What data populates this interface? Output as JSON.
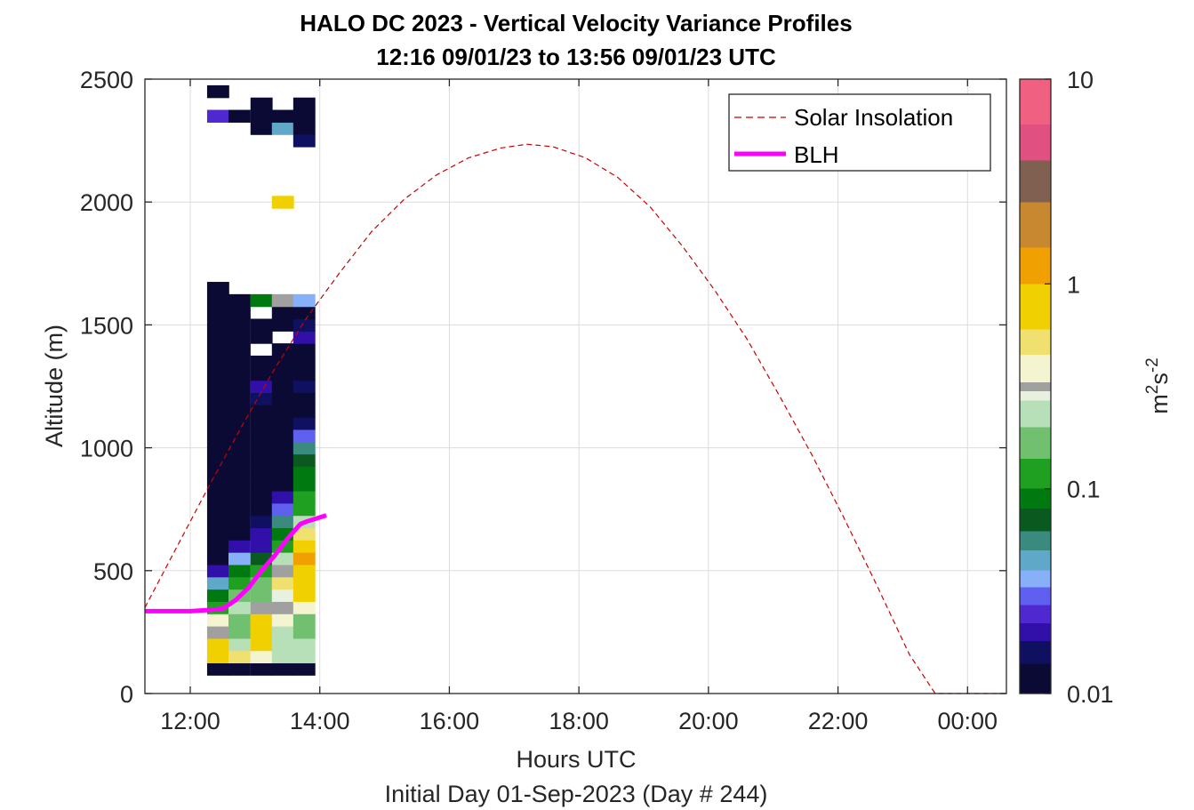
{
  "chart_data": {
    "type": "heatmap",
    "title": "HALO DC 2023 - Vertical Velocity Variance Profiles",
    "subtitle": "12:16 09/01/23 to 13:56 09/01/23  UTC",
    "xlabel": "Hours UTC",
    "xlabel2": "Initial Day 01-Sep-2023 (Day # 244)",
    "ylabel": "Altitude (m)",
    "xlim_hours": [
      11.3,
      24.6
    ],
    "ylim": [
      0,
      2500
    ],
    "x_ticks": [
      {
        "v": 12,
        "label": "12:00"
      },
      {
        "v": 14,
        "label": "14:00"
      },
      {
        "v": 16,
        "label": "16:00"
      },
      {
        "v": 18,
        "label": "18:00"
      },
      {
        "v": 20,
        "label": "20:00"
      },
      {
        "v": 22,
        "label": "22:00"
      },
      {
        "v": 24,
        "label": "00:00"
      }
    ],
    "y_ticks": [
      {
        "v": 0,
        "label": "0"
      },
      {
        "v": 500,
        "label": "500"
      },
      {
        "v": 1000,
        "label": "1000"
      },
      {
        "v": 1500,
        "label": "1500"
      },
      {
        "v": 2000,
        "label": "2000"
      },
      {
        "v": 2500,
        "label": "2500"
      }
    ],
    "grid": true,
    "legend_position": "top-right",
    "colorbar": {
      "label_base": "m",
      "label_sup1": "2",
      "label_mid": "s",
      "label_sup2": "-2",
      "scale": "log",
      "range": [
        0.01,
        10
      ],
      "ticks": [
        {
          "v": 0.01,
          "label": "0.01"
        },
        {
          "v": 0.1,
          "label": "0.1"
        },
        {
          "v": 1,
          "label": "1"
        },
        {
          "v": 10,
          "label": "10"
        }
      ],
      "stops": [
        {
          "v": 0.01,
          "color": "#0a0a35"
        },
        {
          "v": 0.014,
          "color": "#101060"
        },
        {
          "v": 0.018,
          "color": "#3010a8"
        },
        {
          "v": 0.022,
          "color": "#5028d0"
        },
        {
          "v": 0.027,
          "color": "#6060f0"
        },
        {
          "v": 0.033,
          "color": "#88b0f8"
        },
        {
          "v": 0.04,
          "color": "#60a8c8"
        },
        {
          "v": 0.05,
          "color": "#3a8a80"
        },
        {
          "v": 0.062,
          "color": "#0a5a20"
        },
        {
          "v": 0.08,
          "color": "#007a10"
        },
        {
          "v": 0.1,
          "color": "#20a020"
        },
        {
          "v": 0.14,
          "color": "#70c070"
        },
        {
          "v": 0.2,
          "color": "#b8e0b8"
        },
        {
          "v": 0.27,
          "color": "#e8f0e0"
        },
        {
          "v": 0.3,
          "color": "#a0a0a0"
        },
        {
          "v": 0.33,
          "color": "#f4f4d0"
        },
        {
          "v": 0.45,
          "color": "#f0e070"
        },
        {
          "v": 0.6,
          "color": "#f0d000"
        },
        {
          "v": 1.0,
          "color": "#f0a000"
        },
        {
          "v": 1.5,
          "color": "#c88830"
        },
        {
          "v": 2.5,
          "color": "#806050"
        },
        {
          "v": 4.0,
          "color": "#e05080"
        },
        {
          "v": 6.0,
          "color": "#f06080"
        },
        {
          "v": 10,
          "color": "#c01030"
        }
      ]
    },
    "heatmap": {
      "column_times": [
        12.26,
        12.59,
        12.93,
        13.26,
        13.59
      ],
      "column_width_hours": 0.333,
      "cell_height": 50,
      "cells": [
        [
          0,
          100,
          0.01
        ],
        [
          1,
          100,
          0.01
        ],
        [
          2,
          100,
          0.01
        ],
        [
          3,
          100,
          0.01
        ],
        [
          4,
          100,
          0.01
        ],
        [
          0,
          150,
          0.6
        ],
        [
          1,
          150,
          0.55
        ],
        [
          2,
          150,
          0.4
        ],
        [
          3,
          150,
          0.25
        ],
        [
          4,
          150,
          0.22
        ],
        [
          0,
          200,
          0.6
        ],
        [
          1,
          200,
          0.22
        ],
        [
          2,
          200,
          0.6
        ],
        [
          3,
          200,
          0.2
        ],
        [
          4,
          200,
          0.24
        ],
        [
          0,
          250,
          0.3
        ],
        [
          1,
          250,
          0.18
        ],
        [
          2,
          250,
          0.6
        ],
        [
          3,
          250,
          0.22
        ],
        [
          4,
          250,
          0.15
        ],
        [
          0,
          300,
          0.33
        ],
        [
          1,
          300,
          0.15
        ],
        [
          2,
          300,
          0.6
        ],
        [
          3,
          300,
          0.38
        ],
        [
          4,
          300,
          0.15
        ],
        [
          0,
          350,
          0.12
        ],
        [
          1,
          350,
          0.2
        ],
        [
          2,
          350,
          0.3
        ],
        [
          3,
          350,
          0.3
        ],
        [
          4,
          350,
          0.4
        ],
        [
          0,
          400,
          0.08
        ],
        [
          1,
          400,
          0.14
        ],
        [
          2,
          400,
          0.14
        ],
        [
          3,
          400,
          0.28
        ],
        [
          4,
          400,
          0.6
        ],
        [
          0,
          450,
          0.04
        ],
        [
          1,
          450,
          0.12
        ],
        [
          2,
          450,
          0.14
        ],
        [
          3,
          450,
          0.45
        ],
        [
          4,
          450,
          0.9
        ],
        [
          0,
          500,
          0.02
        ],
        [
          1,
          500,
          0.08
        ],
        [
          2,
          500,
          0.1
        ],
        [
          3,
          500,
          0.3
        ],
        [
          4,
          500,
          0.9
        ],
        [
          0,
          550,
          0.01
        ],
        [
          1,
          550,
          0.033
        ],
        [
          2,
          550,
          0.062
        ],
        [
          3,
          550,
          0.2
        ],
        [
          4,
          550,
          1.1
        ],
        [
          0,
          600,
          0.01
        ],
        [
          1,
          600,
          0.018
        ],
        [
          2,
          600,
          0.02
        ],
        [
          3,
          600,
          0.1
        ],
        [
          4,
          600,
          0.9
        ],
        [
          0,
          650,
          0.01
        ],
        [
          1,
          650,
          0.01
        ],
        [
          2,
          650,
          0.018
        ],
        [
          3,
          650,
          0.08
        ],
        [
          4,
          650,
          0.5
        ],
        [
          0,
          700,
          0.01
        ],
        [
          1,
          700,
          0.01
        ],
        [
          2,
          700,
          0.014
        ],
        [
          3,
          700,
          0.05
        ],
        [
          4,
          700,
          0.2
        ],
        [
          0,
          750,
          0.01
        ],
        [
          1,
          750,
          0.01
        ],
        [
          2,
          750,
          0.01
        ],
        [
          3,
          750,
          0.027
        ],
        [
          4,
          750,
          0.12
        ],
        [
          0,
          800,
          0.01
        ],
        [
          1,
          800,
          0.01
        ],
        [
          2,
          800,
          0.01
        ],
        [
          3,
          800,
          0.018
        ],
        [
          4,
          800,
          0.1
        ],
        [
          0,
          850,
          0.01
        ],
        [
          1,
          850,
          0.01
        ],
        [
          2,
          850,
          0.01
        ],
        [
          3,
          850,
          0.01
        ],
        [
          4,
          850,
          0.08
        ],
        [
          0,
          900,
          0.01
        ],
        [
          1,
          900,
          0.01
        ],
        [
          2,
          900,
          0.01
        ],
        [
          3,
          900,
          0.01
        ],
        [
          4,
          900,
          0.08
        ],
        [
          0,
          950,
          0.01
        ],
        [
          1,
          950,
          0.01
        ],
        [
          2,
          950,
          0.01
        ],
        [
          3,
          950,
          0.01
        ],
        [
          4,
          950,
          0.062
        ],
        [
          0,
          1000,
          0.01
        ],
        [
          1,
          1000,
          0.01
        ],
        [
          2,
          1000,
          0.01
        ],
        [
          3,
          1000,
          0.01
        ],
        [
          4,
          1000,
          0.05
        ],
        [
          0,
          1050,
          0.01
        ],
        [
          1,
          1050,
          0.01
        ],
        [
          2,
          1050,
          0.01
        ],
        [
          3,
          1050,
          0.01
        ],
        [
          4,
          1050,
          0.027
        ],
        [
          0,
          1100,
          0.01
        ],
        [
          1,
          1100,
          0.01
        ],
        [
          2,
          1100,
          0.01
        ],
        [
          3,
          1100,
          0.011
        ],
        [
          4,
          1100,
          0.014
        ],
        [
          0,
          1150,
          0.01
        ],
        [
          1,
          1150,
          0.01
        ],
        [
          2,
          1150,
          0.01
        ],
        [
          3,
          1150,
          0.012
        ],
        [
          4,
          1150,
          0.01
        ],
        [
          0,
          1200,
          0.01
        ],
        [
          1,
          1200,
          0.01
        ],
        [
          2,
          1200,
          0.014
        ],
        [
          3,
          1200,
          0.01
        ],
        [
          4,
          1200,
          0.01
        ],
        [
          0,
          1250,
          0.01
        ],
        [
          1,
          1250,
          0.01
        ],
        [
          2,
          1250,
          0.018
        ],
        [
          3,
          1250,
          0.01
        ],
        [
          4,
          1250,
          0.014
        ],
        [
          0,
          1300,
          0.01
        ],
        [
          1,
          1300,
          0.01
        ],
        [
          2,
          1300,
          0.01
        ],
        [
          3,
          1300,
          0.01
        ],
        [
          4,
          1300,
          0.01
        ],
        [
          0,
          1350,
          0.01
        ],
        [
          1,
          1350,
          0.01
        ],
        [
          2,
          1350,
          0.01
        ],
        [
          3,
          1350,
          0.01
        ],
        [
          4,
          1350,
          0.01
        ],
        [
          0,
          1400,
          0.01
        ],
        [
          1,
          1400,
          0.01
        ],
        [
          3,
          1400,
          0.01
        ],
        [
          4,
          1400,
          0.01
        ],
        [
          0,
          1450,
          0.01
        ],
        [
          1,
          1450,
          0.01
        ],
        [
          2,
          1450,
          0.01
        ],
        [
          4,
          1450,
          0.018
        ],
        [
          0,
          1500,
          0.01
        ],
        [
          1,
          1500,
          0.01
        ],
        [
          2,
          1500,
          0.01
        ],
        [
          3,
          1500,
          0.01
        ],
        [
          4,
          1500,
          0.014
        ],
        [
          0,
          1550,
          0.01
        ],
        [
          1,
          1550,
          0.011
        ],
        [
          3,
          1550,
          0.01
        ],
        [
          4,
          1550,
          0.012
        ],
        [
          0,
          1600,
          0.01
        ],
        [
          1,
          1600,
          0.01
        ],
        [
          2,
          1600,
          0.08
        ],
        [
          3,
          1600,
          0.3
        ],
        [
          4,
          1600,
          0.033
        ],
        [
          0,
          1650,
          0.01
        ],
        [
          3,
          2000,
          0.6
        ],
        [
          2,
          2300,
          0.01
        ],
        [
          3,
          2300,
          0.04
        ],
        [
          4,
          2300,
          0.01
        ],
        [
          0,
          2350,
          0.022
        ],
        [
          1,
          2350,
          0.01
        ],
        [
          2,
          2350,
          0.01
        ],
        [
          3,
          2350,
          0.01
        ],
        [
          4,
          2350,
          0.01
        ],
        [
          2,
          2400,
          0.01
        ],
        [
          4,
          2400,
          0.01
        ],
        [
          0,
          2450,
          0.01
        ],
        [
          4,
          2250,
          0.016
        ]
      ]
    },
    "series": [
      {
        "name": "Solar Insolation",
        "style": "dashed",
        "color": "#cc0000",
        "x": [
          11.3,
          11.8,
          12.3,
          12.8,
          13.3,
          13.8,
          14.3,
          14.8,
          15.3,
          15.8,
          16.3,
          16.8,
          17.2,
          17.6,
          18.1,
          18.6,
          19.1,
          19.6,
          20.1,
          20.6,
          21.1,
          21.6,
          22.1,
          22.6,
          23.1,
          23.5,
          23.8,
          24.2,
          24.6
        ],
        "y": [
          350,
          600,
          850,
          1090,
          1320,
          1530,
          1710,
          1880,
          2010,
          2110,
          2180,
          2220,
          2235,
          2225,
          2180,
          2100,
          1980,
          1820,
          1640,
          1440,
          1210,
          970,
          710,
          440,
          160,
          0,
          0,
          0,
          0
        ]
      },
      {
        "name": "BLH",
        "style": "solid",
        "color": "#ff00ff",
        "x": [
          11.3,
          11.7,
          12.0,
          12.3,
          12.5,
          12.7,
          12.9,
          13.1,
          13.3,
          13.5,
          13.7,
          13.8,
          14.1
        ],
        "y": [
          335,
          335,
          335,
          340,
          345,
          380,
          430,
          500,
          560,
          630,
          690,
          700,
          725
        ]
      }
    ]
  }
}
